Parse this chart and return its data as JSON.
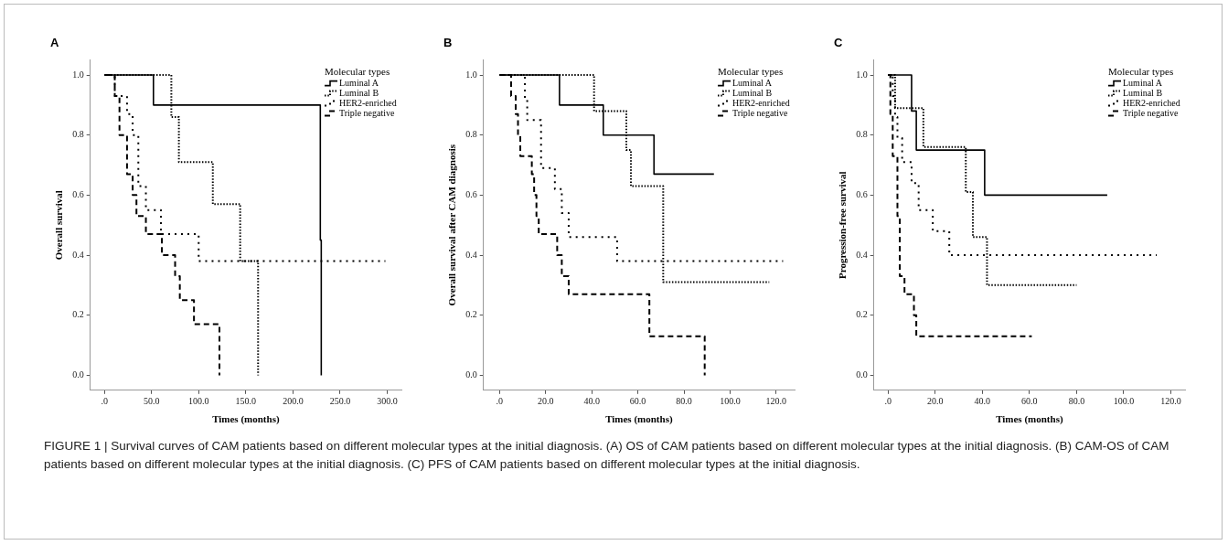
{
  "chart_data": [
    {
      "type": "step",
      "title": "A",
      "xlabel": "Times (months)",
      "ylabel": "Overall survival",
      "legend_title": "Molecular types",
      "legend": "top right",
      "grid": false,
      "xlim": [
        -15,
        315
      ],
      "xticks": [
        {
          "value": 0,
          "label": ".0"
        },
        {
          "value": 50,
          "label": "50.0"
        },
        {
          "value": 100,
          "label": "100.0"
        },
        {
          "value": 150,
          "label": "150.0"
        },
        {
          "value": 200,
          "label": "200.0"
        },
        {
          "value": 250,
          "label": "250.0"
        },
        {
          "value": 300,
          "label": "300.0"
        }
      ],
      "ylim": [
        -0.05,
        1.05
      ],
      "yticks": [
        {
          "value": 0,
          "label": "0.0"
        },
        {
          "value": 0.2,
          "label": "0.2"
        },
        {
          "value": 0.4,
          "label": "0.4"
        },
        {
          "value": 0.6,
          "label": "0.6"
        },
        {
          "value": 0.8,
          "label": "0.8"
        },
        {
          "value": 1,
          "label": "1.0"
        }
      ],
      "series": [
        {
          "name": "Luminal A",
          "color": "#000000",
          "line_style": "solid",
          "x": [
            0,
            52,
            229,
            230
          ],
          "values": [
            1,
            0.9,
            0.45,
            0
          ]
        },
        {
          "name": "Luminal B",
          "color": "#000000",
          "line_style": "dotted",
          "x": [
            0,
            71,
            79,
            115,
            144,
            163
          ],
          "values": [
            1,
            0.86,
            0.71,
            0.57,
            0.38,
            0
          ]
        },
        {
          "name": "HER2-enriched",
          "color": "#000000",
          "line_style": "dotted",
          "x": [
            0,
            11,
            24,
            30,
            36,
            44,
            60,
            100,
            298
          ],
          "values": [
            1,
            0.93,
            0.87,
            0.8,
            0.63,
            0.55,
            0.47,
            0.38,
            0.38
          ]
        },
        {
          "name": "Triple negative",
          "color": "#000000",
          "line_style": "dashed",
          "x": [
            0,
            11,
            16,
            24,
            30,
            34,
            44,
            61,
            75,
            80,
            95,
            122
          ],
          "values": [
            1,
            0.93,
            0.8,
            0.67,
            0.6,
            0.53,
            0.47,
            0.4,
            0.33,
            0.25,
            0.17,
            0
          ]
        }
      ]
    },
    {
      "type": "step",
      "title": "B",
      "xlabel": "Times (months)",
      "ylabel": "Overall survival after CAM diagnosis",
      "legend_title": "Molecular types",
      "legend": "top right",
      "grid": false,
      "xlim": [
        -7,
        128
      ],
      "xticks": [
        {
          "value": 0,
          "label": ".0"
        },
        {
          "value": 20,
          "label": "20.0"
        },
        {
          "value": 40,
          "label": "40.0"
        },
        {
          "value": 60,
          "label": "60.0"
        },
        {
          "value": 80,
          "label": "80.0"
        },
        {
          "value": 100,
          "label": "100.0"
        },
        {
          "value": 120,
          "label": "120.0"
        }
      ],
      "ylim": [
        -0.05,
        1.05
      ],
      "yticks": [
        {
          "value": 0,
          "label": "0.0"
        },
        {
          "value": 0.2,
          "label": "0.2"
        },
        {
          "value": 0.4,
          "label": "0.4"
        },
        {
          "value": 0.6,
          "label": "0.6"
        },
        {
          "value": 0.8,
          "label": "0.8"
        },
        {
          "value": 1,
          "label": "1.0"
        }
      ],
      "series": [
        {
          "name": "Luminal A",
          "color": "#000000",
          "line_style": "solid",
          "x": [
            0,
            26,
            45,
            67,
            93
          ],
          "values": [
            1,
            0.9,
            0.8,
            0.67,
            0.67
          ]
        },
        {
          "name": "Luminal B",
          "color": "#000000",
          "line_style": "dotted",
          "x": [
            0,
            41,
            55,
            57,
            71,
            117
          ],
          "values": [
            1,
            0.88,
            0.75,
            0.63,
            0.31,
            0.31
          ]
        },
        {
          "name": "HER2-enriched",
          "color": "#000000",
          "line_style": "dotted",
          "x": [
            0,
            11,
            12,
            18,
            24,
            27,
            30,
            51,
            123
          ],
          "values": [
            1,
            0.92,
            0.85,
            0.69,
            0.62,
            0.54,
            0.46,
            0.38,
            0.38
          ]
        },
        {
          "name": "Triple negative",
          "color": "#000000",
          "line_style": "dashed",
          "x": [
            0,
            5,
            7,
            8,
            9,
            14,
            15,
            16,
            17,
            25,
            27,
            30,
            65,
            89
          ],
          "values": [
            1,
            0.93,
            0.87,
            0.8,
            0.73,
            0.67,
            0.6,
            0.53,
            0.47,
            0.4,
            0.33,
            0.27,
            0.13,
            0
          ]
        }
      ]
    },
    {
      "type": "step",
      "title": "C",
      "xlabel": "Times (months)",
      "ylabel": "Progression-free survival",
      "legend_title": "Molecular types",
      "legend": "top right",
      "grid": false,
      "xlim": [
        -6,
        126
      ],
      "xticks": [
        {
          "value": 0,
          "label": ".0"
        },
        {
          "value": 20,
          "label": "20.0"
        },
        {
          "value": 40,
          "label": "40.0"
        },
        {
          "value": 60,
          "label": "60.0"
        },
        {
          "value": 80,
          "label": "80.0"
        },
        {
          "value": 100,
          "label": "100.0"
        },
        {
          "value": 120,
          "label": "120.0"
        }
      ],
      "ylim": [
        -0.05,
        1.05
      ],
      "yticks": [
        {
          "value": 0,
          "label": "0.0"
        },
        {
          "value": 0.2,
          "label": "0.2"
        },
        {
          "value": 0.4,
          "label": "0.4"
        },
        {
          "value": 0.6,
          "label": "0.6"
        },
        {
          "value": 0.8,
          "label": "0.8"
        },
        {
          "value": 1,
          "label": "1.0"
        }
      ],
      "annotations": [
        "FIGURE 1 | Survival curves of CAM patients based on different molecular types at the initial diagnosis. (A) OS of CAM patients based on different molecular types at the initial diagnosis. (B) CAM-OS of CAM patients based on different molecular types at the initial diagnosis. (C) PFS of CAM patients based on different molecular types at the initial diagnosis."
      ],
      "series": [
        {
          "name": "Luminal A",
          "color": "#000000",
          "line_style": "solid",
          "x": [
            0,
            10,
            12,
            41,
            93
          ],
          "values": [
            1,
            0.88,
            0.75,
            0.6,
            0.6
          ]
        },
        {
          "name": "Luminal B",
          "color": "#000000",
          "line_style": "dotted",
          "x": [
            0,
            3,
            15,
            33,
            36,
            42,
            80
          ],
          "values": [
            1,
            0.89,
            0.76,
            0.61,
            0.46,
            0.3,
            0.3
          ]
        },
        {
          "name": "HER2-enriched",
          "color": "#000000",
          "line_style": "dotted",
          "x": [
            0,
            2,
            3,
            4,
            6,
            10,
            13,
            19,
            26,
            114
          ],
          "values": [
            1,
            0.93,
            0.86,
            0.79,
            0.71,
            0.64,
            0.55,
            0.48,
            0.4,
            0.4
          ]
        },
        {
          "name": "Triple negative",
          "color": "#000000",
          "line_style": "dashed",
          "x": [
            0,
            1,
            2,
            4,
            5,
            7,
            11,
            12,
            61
          ],
          "values": [
            1,
            0.87,
            0.73,
            0.53,
            0.33,
            0.27,
            0.2,
            0.13,
            0.13
          ]
        }
      ]
    }
  ]
}
